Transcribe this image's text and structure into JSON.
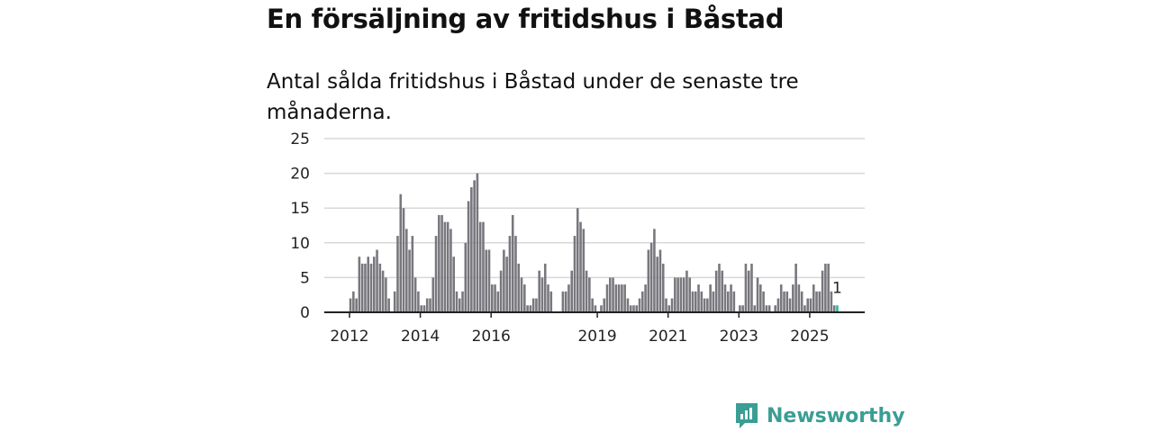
{
  "title": "En försäljning av fritidshus i Båstad",
  "subtitle": "Antal sålda fritidshus i Båstad under de senaste tre månaderna.",
  "brand": "Newsworthy",
  "colors": {
    "bar": "#77777d",
    "highlight": "#2bb3a0",
    "brand": "#3a9e94"
  },
  "chart_data": {
    "type": "bar",
    "title": "Antal sålda fritidshus i Båstad under de senaste tre månaderna.",
    "xlabel": "",
    "ylabel": "",
    "ylim": [
      0,
      25
    ],
    "yticks": [
      "0",
      "5",
      "10",
      "15",
      "20",
      "25"
    ],
    "xticks": [
      "2012",
      "2014",
      "2016",
      "2019",
      "2021",
      "2023",
      "2025"
    ],
    "start": "2012-01",
    "frequency": "monthly",
    "values": [
      2,
      3,
      2,
      8,
      7,
      7,
      8,
      7,
      8,
      9,
      7,
      6,
      5,
      2,
      0,
      3,
      11,
      17,
      15,
      12,
      9,
      11,
      5,
      3,
      1,
      1,
      2,
      2,
      5,
      11,
      14,
      14,
      13,
      13,
      12,
      8,
      3,
      2,
      3,
      10,
      16,
      18,
      19,
      20,
      13,
      13,
      9,
      9,
      4,
      4,
      3,
      6,
      9,
      8,
      11,
      14,
      11,
      7,
      5,
      4,
      1,
      1,
      2,
      2,
      6,
      5,
      7,
      4,
      3,
      0,
      0,
      0,
      3,
      3,
      4,
      6,
      11,
      15,
      13,
      12,
      6,
      5,
      2,
      1,
      0,
      1,
      2,
      4,
      5,
      5,
      4,
      4,
      4,
      4,
      2,
      1,
      1,
      1,
      2,
      3,
      4,
      9,
      10,
      12,
      8,
      9,
      7,
      2,
      1,
      2,
      5,
      5,
      5,
      5,
      6,
      5,
      3,
      3,
      4,
      3,
      2,
      2,
      4,
      3,
      6,
      7,
      6,
      4,
      3,
      4,
      3,
      0,
      1,
      1,
      7,
      6,
      7,
      1,
      5,
      4,
      3,
      1,
      1,
      0,
      1,
      2,
      4,
      3,
      3,
      2,
      4,
      7,
      4,
      3,
      1,
      2,
      2,
      4,
      3,
      3,
      6,
      7,
      7,
      3,
      1,
      1
    ],
    "last_label": "1",
    "grid": true
  }
}
